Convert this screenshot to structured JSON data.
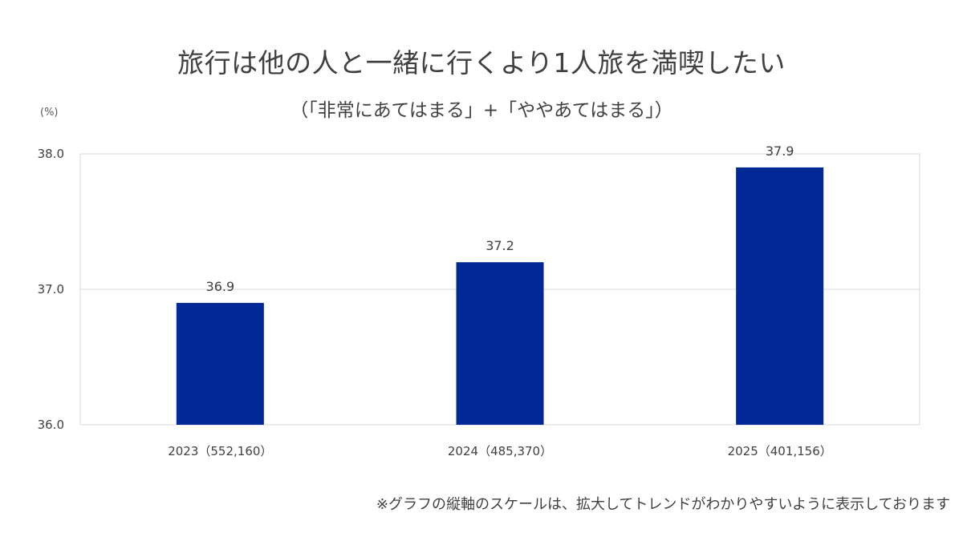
{
  "chart_data": {
    "type": "bar",
    "title": "旅行は他の人と一緒に行くより1人旅を満喫したい",
    "subtitle": "（「非常にあてはまる」+「ややあてはまる」）",
    "unit_label": "(%)",
    "categories": [
      "2023（552,160）",
      "2024（485,370）",
      "2025（401,156）"
    ],
    "values": [
      36.9,
      37.2,
      37.9
    ],
    "data_labels": [
      "36.9",
      "37.2",
      "37.9"
    ],
    "ylim": [
      36.0,
      38.0
    ],
    "yticks": [
      36.0,
      37.0,
      38.0
    ],
    "ytick_labels": [
      "36.0",
      "37.0",
      "38.0"
    ],
    "grid": true,
    "bar_color": "#002896",
    "grid_color": "#d9d9d9",
    "footnote": "※グラフの縦軸のスケールは、拡大してトレンドがわかりやすいように表示しております"
  }
}
